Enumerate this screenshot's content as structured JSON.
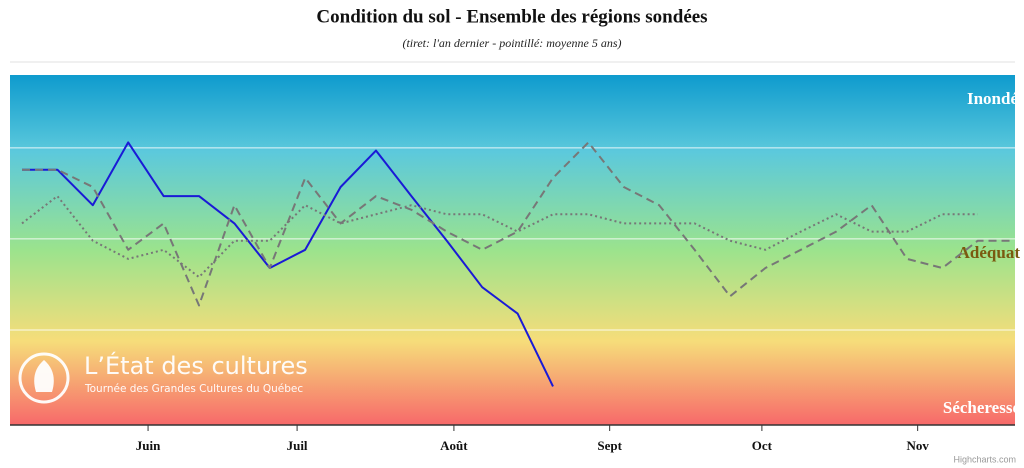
{
  "chart_data": {
    "type": "line",
    "title": "Condition du sol - Ensemble des régions sondées",
    "subtitle": "(tiret: l'an dernier - pointillé: moyenne 5 ans)",
    "xlim": [
      -0.34,
      28.05
    ],
    "xticks": [
      {
        "value": 3.56,
        "label": "Juin"
      },
      {
        "value": 7.77,
        "label": "Juil"
      },
      {
        "value": 12.2,
        "label": "Août"
      },
      {
        "value": 16.6,
        "label": "Sept"
      },
      {
        "value": 20.9,
        "label": "Oct"
      },
      {
        "value": 25.3,
        "label": "Nov"
      }
    ],
    "ylim": [
      0,
      3.8
    ],
    "grid_lines": [
      1,
      2,
      3
    ],
    "series": [
      {
        "color": "#1a1ad6",
        "style": "solid",
        "x": [
          0,
          1,
          2,
          3,
          4,
          5,
          6,
          7,
          8,
          9,
          10,
          11,
          12,
          13,
          14,
          15
        ],
        "values": [
          2.76,
          2.76,
          2.37,
          3.06,
          2.47,
          2.47,
          2.17,
          1.68,
          1.88,
          2.57,
          2.97,
          2.47,
          1.98,
          1.47,
          1.18,
          0.38
        ]
      },
      {
        "color": "#777777",
        "style": "dash",
        "x": [
          0,
          1,
          2,
          3,
          4,
          5,
          6,
          7,
          8,
          9,
          10,
          11,
          12,
          13,
          14,
          15,
          16,
          17,
          18,
          19,
          20,
          21,
          22,
          23,
          24,
          25,
          26,
          27,
          28
        ],
        "values": [
          2.76,
          2.76,
          2.57,
          1.88,
          2.17,
          1.27,
          2.37,
          1.68,
          2.67,
          2.17,
          2.47,
          2.32,
          2.08,
          1.88,
          2.08,
          2.67,
          3.06,
          2.57,
          2.37,
          1.88,
          1.37,
          1.68,
          1.88,
          2.08,
          2.37,
          1.78,
          1.68,
          1.98,
          1.98
        ]
      },
      {
        "color": "#777777",
        "style": "dot",
        "x": [
          0,
          1,
          2,
          3,
          4,
          5,
          6,
          7,
          8,
          9,
          10,
          11,
          12,
          13,
          14,
          15,
          16,
          17,
          18,
          19,
          20,
          21,
          22,
          23,
          24,
          25,
          26,
          27
        ],
        "values": [
          2.17,
          2.47,
          1.98,
          1.78,
          1.88,
          1.58,
          1.98,
          1.98,
          2.37,
          2.17,
          2.27,
          2.37,
          2.27,
          2.27,
          2.08,
          2.27,
          2.27,
          2.17,
          2.17,
          2.17,
          1.98,
          1.88,
          2.08,
          2.27,
          2.08,
          2.08,
          2.27,
          2.27
        ]
      }
    ],
    "band_labels": [
      {
        "text": "Inondé",
        "color": "#ffffff"
      },
      {
        "text": "Adéquat",
        "color": "#7a5a10"
      },
      {
        "text": "Sécheresse",
        "color": "#ffffff"
      }
    ],
    "watermark": {
      "title": "L’État des cultures",
      "subtitle": "Tournée des Grandes Cultures du Québec"
    },
    "credits": "Highcharts.com"
  }
}
